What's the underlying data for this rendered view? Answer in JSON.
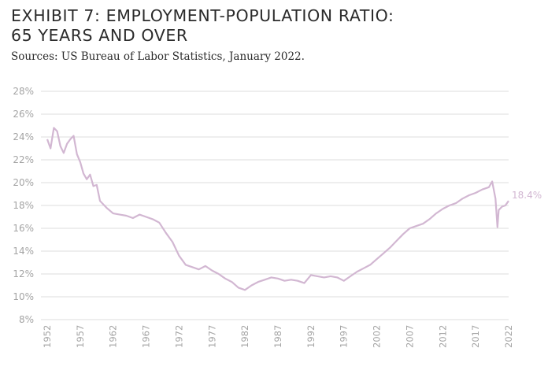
{
  "title_line1": "EXHIBIT 7: EMPLOYMENT-POPULATION RATIO:",
  "title_line2": "65 YEARS AND OVER",
  "source": "Sources: US Bureau of Labor Statistics, January 2022.",
  "colors": {
    "line": "#d2b7d2",
    "grid": "#dcdcdc",
    "tick_text": "#a4a4a4",
    "title": "#2b2b2b"
  },
  "chart_data": {
    "type": "line",
    "title": "EXHIBIT 7: EMPLOYMENT-POPULATION RATIO: 65 YEARS AND OVER",
    "xlabel": "",
    "ylabel": "",
    "ylim": [
      8,
      28
    ],
    "xlim": [
      1952,
      2022
    ],
    "grid": "horizontal",
    "legend": "none",
    "y_ticks": [
      "8%",
      "10%",
      "12%",
      "14%",
      "16%",
      "18%",
      "20%",
      "22%",
      "24%",
      "26%",
      "28%"
    ],
    "x_ticks": [
      "1952",
      "1957",
      "1962",
      "1967",
      "1972",
      "1977",
      "1982",
      "1987",
      "1992",
      "1997",
      "2002",
      "2007",
      "2012",
      "2017",
      "2022"
    ],
    "end_label": "18.4%",
    "series": [
      {
        "x": [
          1952,
          1952.5,
          1953,
          1953.5,
          1954,
          1954.5,
          1955,
          1955.5,
          1956,
          1956.5,
          1957,
          1957.5,
          1958,
          1958.5,
          1959,
          1959.5,
          1960,
          1961,
          1962,
          1963,
          1964,
          1965,
          1966,
          1967,
          1968,
          1969,
          1970,
          1971,
          1972,
          1973,
          1974,
          1975,
          1976,
          1977,
          1978,
          1979,
          1980,
          1981,
          1982,
          1983,
          1984,
          1985,
          1986,
          1987,
          1988,
          1989,
          1990,
          1991,
          1992,
          1993,
          1994,
          1995,
          1996,
          1997,
          1998,
          1999,
          2000,
          2001,
          2002,
          2003,
          2004,
          2005,
          2006,
          2007,
          2008,
          2009,
          2010,
          2011,
          2012,
          2013,
          2014,
          2015,
          2016,
          2017,
          2018,
          2019,
          2019.5,
          2020,
          2020.3,
          2020.5,
          2021,
          2021.5,
          2022
        ],
        "y": [
          23.8,
          23.0,
          24.8,
          24.5,
          23.2,
          22.6,
          23.4,
          23.8,
          24.1,
          22.5,
          21.8,
          20.8,
          20.3,
          20.7,
          19.7,
          19.8,
          18.4,
          17.8,
          17.3,
          17.2,
          17.1,
          16.9,
          17.2,
          17.0,
          16.8,
          16.5,
          15.6,
          14.8,
          13.6,
          12.8,
          12.6,
          12.4,
          12.7,
          12.3,
          12.0,
          11.6,
          11.3,
          10.8,
          10.6,
          11.0,
          11.3,
          11.5,
          11.7,
          11.6,
          11.4,
          11.5,
          11.4,
          11.2,
          11.9,
          11.8,
          11.7,
          11.8,
          11.7,
          11.4,
          11.8,
          12.2,
          12.5,
          12.8,
          13.3,
          13.8,
          14.3,
          14.9,
          15.5,
          16.0,
          16.2,
          16.4,
          16.8,
          17.3,
          17.7,
          18.0,
          18.2,
          18.6,
          18.9,
          19.1,
          19.4,
          19.6,
          20.1,
          18.6,
          16.1,
          17.6,
          17.9,
          18.0,
          18.4
        ]
      }
    ]
  }
}
